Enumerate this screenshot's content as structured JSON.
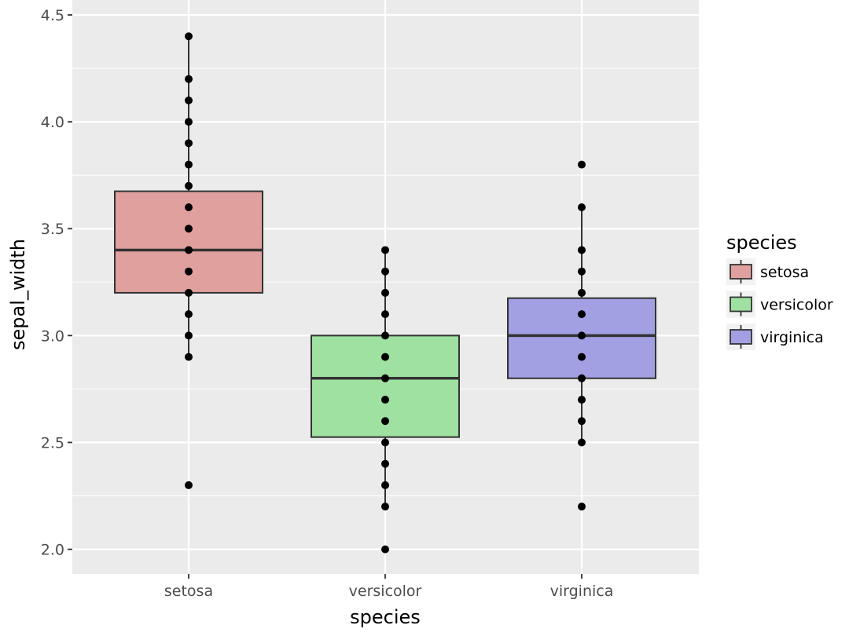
{
  "chart_data": {
    "type": "boxplot",
    "title": "",
    "xlabel": "species",
    "ylabel": "sepal_width",
    "ylim": [
      1.88,
      4.52
    ],
    "grid": true,
    "y_major_ticks": [
      2.0,
      2.5,
      3.0,
      3.5,
      4.0,
      4.5
    ],
    "y_tick_labels": [
      "2.0",
      "2.5",
      "3.0",
      "3.5",
      "4.0",
      "4.5"
    ],
    "y_minor_ticks": [
      2.25,
      2.75,
      3.25,
      3.75,
      4.25
    ],
    "categories": [
      "setosa",
      "versicolor",
      "virginica"
    ],
    "legend": {
      "title": "species",
      "position": "right",
      "entries": [
        "setosa",
        "versicolor",
        "virginica"
      ]
    },
    "boxes": [
      {
        "category": "setosa",
        "color": "#e0a09e",
        "whisker_low": 2.9,
        "q1": 3.2,
        "median": 3.4,
        "q3": 3.675,
        "whisker_high": 4.4,
        "points": [
          2.3,
          2.9,
          3.0,
          3.1,
          3.2,
          3.3,
          3.4,
          3.5,
          3.6,
          3.7,
          3.8,
          3.9,
          4.0,
          4.1,
          4.2,
          4.4
        ]
      },
      {
        "category": "versicolor",
        "color": "#9fe1a0",
        "whisker_low": 2.2,
        "q1": 2.525,
        "median": 2.8,
        "q3": 3.0,
        "whisker_high": 3.4,
        "points": [
          2.0,
          2.2,
          2.3,
          2.4,
          2.5,
          2.6,
          2.7,
          2.8,
          2.9,
          3.0,
          3.1,
          3.2,
          3.3,
          3.4
        ]
      },
      {
        "category": "virginica",
        "color": "#a29fe2",
        "whisker_low": 2.5,
        "q1": 2.8,
        "median": 3.0,
        "q3": 3.175,
        "whisker_high": 3.6,
        "points": [
          2.2,
          2.5,
          2.6,
          2.7,
          2.8,
          2.9,
          3.0,
          3.1,
          3.2,
          3.3,
          3.4,
          3.6,
          3.8
        ]
      }
    ]
  },
  "colors": {
    "panel_background": "#ebebeb",
    "grid_line": "#ffffff",
    "box_outline": "#333333",
    "point": "#000000"
  }
}
